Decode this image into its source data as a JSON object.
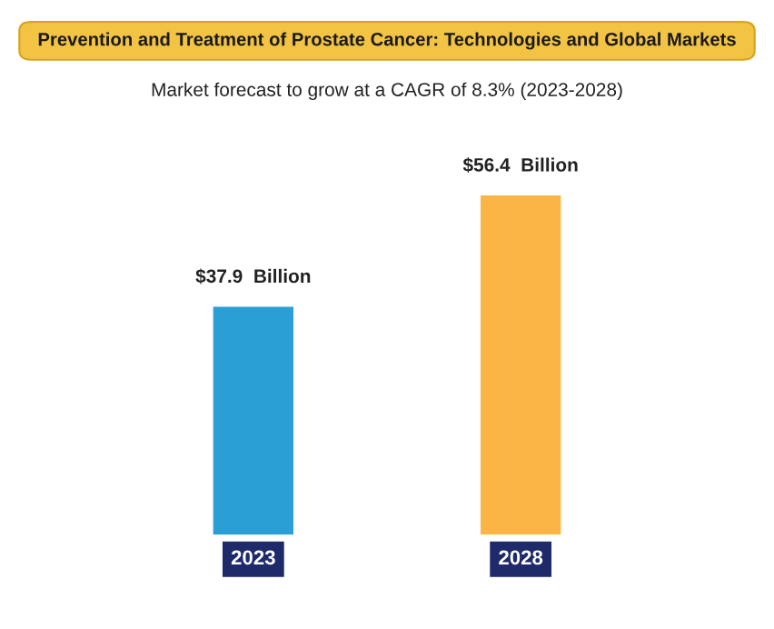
{
  "chart_data": {
    "type": "bar",
    "title": "Prevention and Treatment of Prostate Cancer: Technologies and Global Markets",
    "subtitle": "Market forecast to grow at a CAGR of 8.3% (2023-2028)",
    "categories": [
      "2023",
      "2028"
    ],
    "values": [
      37.9,
      56.4
    ],
    "colors": [
      "#2a9fd6",
      "#fbb545"
    ],
    "value_labels": [
      "$37.9  Billion",
      "$56.4  Billion"
    ],
    "grid": false,
    "legend": false
  }
}
